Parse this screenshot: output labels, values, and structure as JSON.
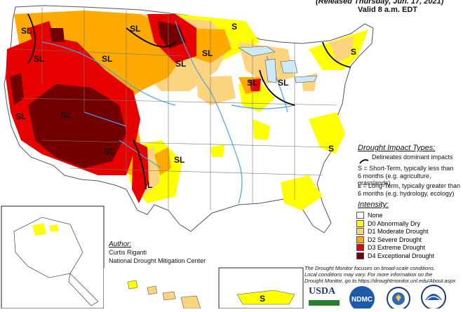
{
  "header": {
    "released_line": "(Released Thursday, Jun. 17, 2021)",
    "valid_line": "Valid 8 a.m. EDT"
  },
  "map": {
    "region_labels": [
      "SL",
      "SL",
      "SL",
      "SL",
      "SL",
      "SL",
      "SL",
      "SL",
      "SL",
      "SL",
      "S",
      "S",
      "S",
      "L",
      "SL",
      "SL",
      "S"
    ],
    "colors": {
      "none": "#ffffff",
      "d0": "#ffff00",
      "d1": "#fcd37f",
      "d2": "#ffaa00",
      "d3": "#e60000",
      "d4": "#730000",
      "water": "#4aa3df",
      "border": "#555555"
    }
  },
  "impact_legend": {
    "title": "Drought Impact Types:",
    "delineates": "Delineates dominant impacts",
    "short_term_1": "S = Short-Term, typically less than",
    "short_term_2": "6 months (e.g. agriculture, grasslands)",
    "long_term_1": "L = Long-Term, typically greater than",
    "long_term_2": "6 months (e.g. hydrology, ecology)"
  },
  "intensity_legend": {
    "title": "Intensity:",
    "items": [
      {
        "label": "None",
        "color": "#ffffff"
      },
      {
        "label": "D0 Abnormally Dry",
        "color": "#ffff00"
      },
      {
        "label": "D1 Moderate Drought",
        "color": "#fcd37f"
      },
      {
        "label": "D2 Severe Drought",
        "color": "#ffaa00"
      },
      {
        "label": "D3 Extreme Drought",
        "color": "#e60000"
      },
      {
        "label": "D4 Exceptional Drought",
        "color": "#730000"
      }
    ]
  },
  "author": {
    "heading": "Author:",
    "name": "Curtis Riganti",
    "org": "National Drought Mitigation Center"
  },
  "disclaimer": {
    "line1": "The Drought Monitor focuses on broad-scale conditions.",
    "line2": "Local conditions may vary. For more information on the",
    "line3": "Drought Monitor, go to https://droughtmonitor.unl.edu/About.aspx"
  },
  "logos": {
    "usda": "USDA",
    "ndmc": "NDMC"
  },
  "insets": {
    "puerto_rico_label": "S"
  }
}
